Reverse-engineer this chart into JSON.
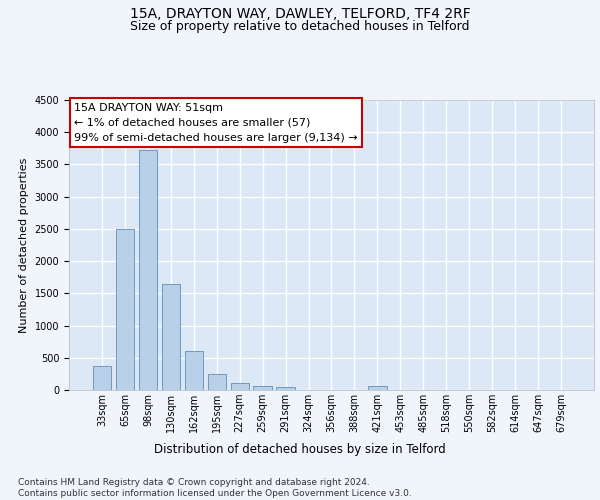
{
  "title": "15A, DRAYTON WAY, DAWLEY, TELFORD, TF4 2RF",
  "subtitle": "Size of property relative to detached houses in Telford",
  "xlabel": "Distribution of detached houses by size in Telford",
  "ylabel": "Number of detached properties",
  "categories": [
    "33sqm",
    "65sqm",
    "98sqm",
    "130sqm",
    "162sqm",
    "195sqm",
    "227sqm",
    "259sqm",
    "291sqm",
    "324sqm",
    "356sqm",
    "388sqm",
    "421sqm",
    "453sqm",
    "485sqm",
    "518sqm",
    "550sqm",
    "582sqm",
    "614sqm",
    "647sqm",
    "679sqm"
  ],
  "values": [
    380,
    2500,
    3720,
    1640,
    600,
    245,
    105,
    60,
    45,
    0,
    0,
    0,
    55,
    0,
    0,
    0,
    0,
    0,
    0,
    0,
    0
  ],
  "bar_color": "#b8d0e8",
  "bar_edge_color": "#6090b8",
  "annotation_text": "15A DRAYTON WAY: 51sqm\n← 1% of detached houses are smaller (57)\n99% of semi-detached houses are larger (9,134) →",
  "annotation_box_color": "#ffffff",
  "annotation_edge_color": "#cc0000",
  "ylim": [
    0,
    4500
  ],
  "yticks": [
    0,
    500,
    1000,
    1500,
    2000,
    2500,
    3000,
    3500,
    4000,
    4500
  ],
  "axes_background": "#dce8f5",
  "fig_background": "#f0f5fc",
  "grid_color": "#ffffff",
  "footer_text": "Contains HM Land Registry data © Crown copyright and database right 2024.\nContains public sector information licensed under the Open Government Licence v3.0.",
  "title_fontsize": 10,
  "subtitle_fontsize": 9,
  "xlabel_fontsize": 8.5,
  "ylabel_fontsize": 8,
  "tick_fontsize": 7,
  "annotation_fontsize": 8,
  "footer_fontsize": 6.5
}
